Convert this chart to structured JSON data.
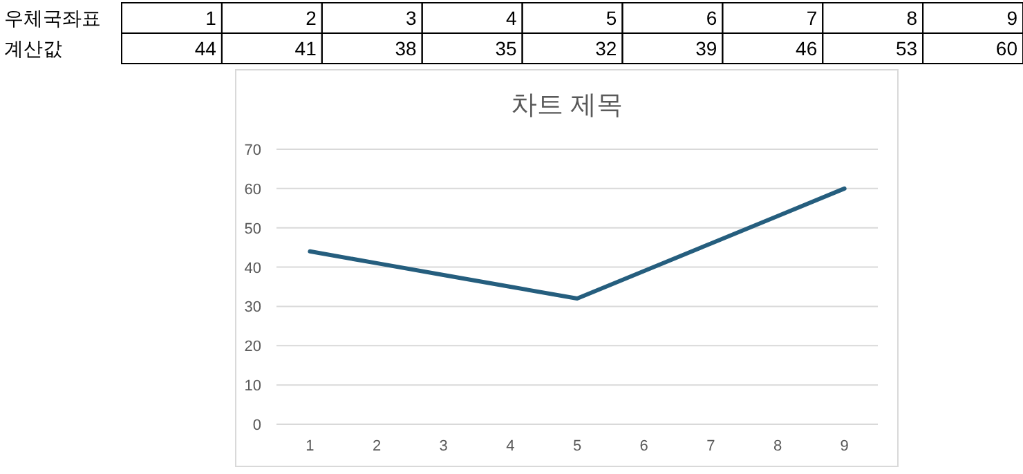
{
  "chart_data": {
    "type": "line",
    "title": "차트 제목",
    "categories": [
      "1",
      "2",
      "3",
      "4",
      "5",
      "6",
      "7",
      "8",
      "9"
    ],
    "series": [
      {
        "color": "#255e7e",
        "values": [
          44,
          41,
          38,
          35,
          32,
          39,
          46,
          53,
          60
        ]
      }
    ],
    "ylim": [
      0,
      70
    ],
    "yticks": [
      0,
      10,
      20,
      30,
      40,
      50,
      60,
      70
    ],
    "grid": "y",
    "marker": "none",
    "line_style": "solid",
    "annotations": [
      "우체국좌표",
      "계산값",
      "44",
      "41",
      "38",
      "35",
      "32",
      "39",
      "46",
      "53",
      "60"
    ]
  }
}
